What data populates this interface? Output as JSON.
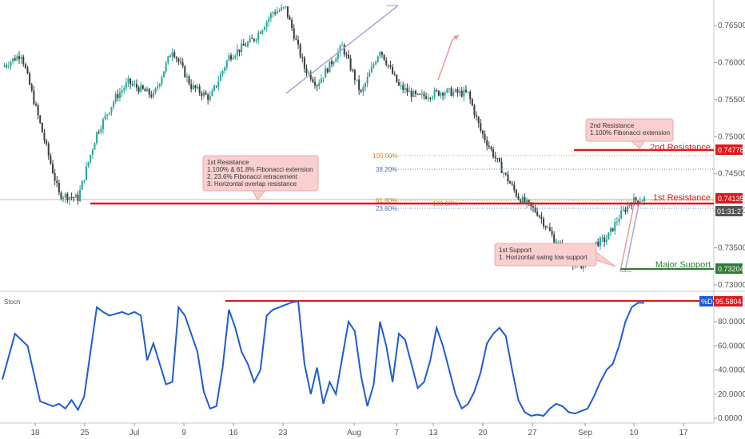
{
  "chart_data": [
    {
      "type": "candlestick",
      "instrument_pane": "price",
      "price_axis": {
        "ticks": [
          "0.76500",
          "0.76000",
          "0.75500",
          "0.75000",
          "0.74500",
          "0.74000",
          "0.73500",
          "0.73000"
        ],
        "ylim": [
          0.7298,
          0.7678
        ]
      },
      "time_axis": {
        "ticks": [
          "18",
          "25",
          "Jul",
          "9",
          "16",
          "23",
          "Aug",
          "7",
          "13",
          "20",
          "27",
          "Sep",
          "10",
          "17"
        ]
      },
      "price_path": {
        "x_index": [
          0,
          3,
          9,
          12,
          15,
          18,
          20,
          24,
          27,
          30,
          33,
          36,
          40,
          43,
          45,
          48,
          50,
          54,
          57,
          60,
          63,
          66,
          70,
          74,
          76,
          79,
          82,
          85,
          88,
          90,
          92,
          94,
          96,
          98,
          100,
          102
        ],
        "close": [
          0.7594,
          0.7612,
          0.7422,
          0.7417,
          0.7505,
          0.7553,
          0.7573,
          0.7555,
          0.7618,
          0.7568,
          0.7552,
          0.7608,
          0.7632,
          0.7668,
          0.7673,
          0.7593,
          0.7571,
          0.7622,
          0.7558,
          0.7618,
          0.7568,
          0.7553,
          0.7561,
          0.7558,
          0.7508,
          0.7461,
          0.7418,
          0.7398,
          0.7358,
          0.7336,
          0.7322,
          0.7355,
          0.7362,
          0.7392,
          0.7413,
          0.7416
        ]
      },
      "levels": [
        {
          "name": "2nd Resistance",
          "value": "0.74778",
          "color": "#e0191d"
        },
        {
          "name": "1st Resistance",
          "value": "0.74135",
          "color": "#e0191d"
        },
        {
          "name": "Major Support",
          "value": "0.73204",
          "color": "#2e7d32"
        }
      ],
      "countdown": "01:31:27",
      "fibonacci_labels": {
        "f100": "100.00%",
        "f382": "38.20%",
        "f618": "61.80%",
        "f236": "23.60%",
        "f100b": "100.00%"
      },
      "annotations": {
        "r1": [
          "1st Resistance",
          "1.100% & 61.8% Fibonacci extension",
          "2. 23.6% Fibonacci retracement",
          "3. Horizontal overlap resistance"
        ],
        "r2": [
          "2nd Resistance",
          "1.100% Fibonacci extension"
        ],
        "s1": [
          "1st Support",
          "1. Horizontal swing low support"
        ]
      },
      "colors": {
        "up": "#26a69a",
        "down": "#3b3b3b",
        "resistance": "#e0191d",
        "support": "#2e7d32",
        "annotation_bg": "#f9cfcf"
      }
    },
    {
      "type": "line",
      "instrument_pane": "indicator",
      "title": "Stoch",
      "series_label": "%D",
      "last_value": "95.5804",
      "y_axis": {
        "ticks": [
          "80.0000",
          "60.0000",
          "40.0000",
          "20.0000",
          "0.0000"
        ],
        "ylim": [
          -4,
          100
        ]
      },
      "series": [
        {
          "name": "%D",
          "x_index": [
            0,
            2,
            4,
            6,
            8,
            9,
            10,
            11,
            12,
            13,
            14,
            15,
            16,
            17,
            19,
            20,
            21,
            22,
            23,
            24,
            26,
            27,
            28,
            29,
            30,
            31,
            32,
            33,
            34,
            35,
            36,
            37,
            38,
            39,
            40,
            41,
            42,
            43,
            44,
            45,
            46,
            47,
            48,
            49,
            50,
            51,
            52,
            53,
            54,
            55,
            56,
            57,
            58,
            59,
            60,
            61,
            62,
            63,
            64,
            65,
            66,
            67,
            68,
            69,
            70,
            71,
            72,
            73,
            74,
            75,
            76,
            77,
            78,
            79,
            80,
            81,
            82,
            83,
            84,
            85,
            86,
            87,
            88,
            89,
            90,
            91,
            92,
            93,
            94,
            95,
            96,
            97,
            98,
            99,
            100,
            101,
            102
          ],
          "values": [
            32,
            70,
            60,
            14,
            10,
            12,
            8,
            15,
            7,
            18,
            55,
            92,
            88,
            85,
            88,
            86,
            88,
            85,
            48,
            62,
            28,
            30,
            92,
            85,
            70,
            55,
            22,
            8,
            10,
            42,
            90,
            75,
            55,
            45,
            30,
            40,
            85,
            90,
            92,
            94,
            96,
            97,
            45,
            20,
            42,
            12,
            30,
            20,
            50,
            80,
            72,
            35,
            10,
            28,
            80,
            60,
            30,
            70,
            65,
            45,
            25,
            30,
            48,
            75,
            60,
            40,
            20,
            8,
            12,
            22,
            38,
            62,
            70,
            75,
            68,
            40,
            15,
            5,
            2,
            3,
            2,
            8,
            12,
            10,
            5,
            4,
            6,
            8,
            18,
            30,
            40,
            45,
            60,
            80,
            92,
            95.58,
            95.58
          ]
        }
      ]
    }
  ]
}
